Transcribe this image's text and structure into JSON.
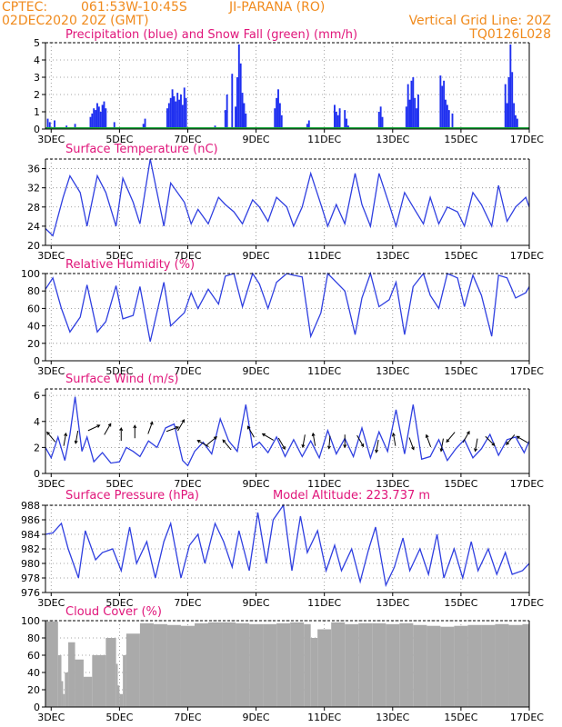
{
  "header": {
    "source": "CPTEC:",
    "coords": "061:53W-10:45S",
    "location": "JI-PARANA (RO)",
    "date": "02DEC2020 20Z (GMT)",
    "grid_note": "Vertical Grid Line: 20Z",
    "code": "TQ0126L028"
  },
  "colors": {
    "header": "#f08a1c",
    "title": "#e0157a",
    "line": "#2f3fe0",
    "precip": "#1e2ff0",
    "snow": "#1aa83a",
    "cloud": "#aaaaaa"
  },
  "x_axis": {
    "day_start": 2.833,
    "day_end": 17.0,
    "tick_days": [
      3,
      5,
      7,
      9,
      11,
      13,
      15,
      17
    ],
    "tick_labels": [
      "3DEC",
      "5DEC",
      "7DEC",
      "9DEC",
      "11DEC",
      "13DEC",
      "15DEC",
      "17DEC"
    ]
  },
  "chart_data": [
    {
      "type": "bar",
      "title": "Precipitation (blue) and Snow Fall (green) (mm/h)",
      "ylim": [
        0,
        5
      ],
      "yticks": [
        "0",
        "1",
        "2",
        "3",
        "4",
        "5"
      ],
      "series": [
        {
          "name": "Precipitation",
          "x": [
            2.9,
            2.96,
            3.1,
            3.25,
            3.45,
            3.7,
            4.15,
            4.2,
            4.25,
            4.3,
            4.35,
            4.4,
            4.45,
            4.5,
            4.55,
            4.6,
            4.85,
            5.7,
            5.75,
            6.4,
            6.45,
            6.5,
            6.55,
            6.6,
            6.65,
            6.7,
            6.75,
            6.8,
            6.85,
            6.9,
            6.95,
            7.8,
            8.1,
            8.15,
            8.3,
            8.4,
            8.45,
            8.5,
            8.55,
            8.6,
            8.65,
            8.7,
            9.55,
            9.6,
            9.65,
            9.7,
            9.75,
            10.5,
            10.55,
            11.3,
            11.35,
            11.4,
            11.45,
            11.6,
            11.65,
            11.7,
            12.6,
            12.65,
            12.7,
            13.4,
            13.45,
            13.5,
            13.55,
            13.6,
            13.65,
            13.7,
            13.75,
            14.4,
            14.45,
            14.5,
            14.55,
            14.6,
            14.65,
            14.75,
            16.3,
            16.35,
            16.4,
            16.45,
            16.5,
            16.55,
            16.6,
            16.65
          ],
          "values": [
            0.6,
            0.4,
            0.5,
            0.1,
            0.2,
            0.3,
            0.7,
            0.9,
            1.2,
            1.1,
            1.5,
            1.3,
            1.0,
            1.4,
            1.6,
            1.2,
            0.4,
            0.3,
            0.6,
            1.2,
            1.5,
            1.8,
            2.3,
            1.9,
            1.6,
            2.1,
            1.7,
            2.0,
            1.4,
            2.4,
            1.8,
            0.2,
            1.1,
            2.0,
            3.2,
            1.3,
            3.0,
            4.9,
            3.8,
            2.1,
            1.5,
            0.9,
            1.2,
            1.8,
            2.3,
            1.5,
            0.8,
            0.3,
            0.5,
            1.4,
            1.0,
            0.8,
            1.2,
            1.1,
            0.6,
            0.2,
            1.0,
            1.3,
            0.7,
            1.3,
            2.6,
            1.7,
            2.8,
            3.0,
            1.8,
            1.2,
            2.0,
            3.1,
            2.5,
            2.8,
            1.7,
            1.4,
            1.1,
            0.9,
            2.6,
            1.5,
            3.0,
            4.9,
            3.3,
            1.5,
            0.8,
            0.6
          ]
        },
        {
          "name": "Snow Fall",
          "x": [
            2.833,
            17.0
          ],
          "values": [
            0,
            0
          ]
        }
      ]
    },
    {
      "type": "line",
      "title": "Surface Temperature (nC)",
      "ylim": [
        20,
        38
      ],
      "yticks": [
        "20",
        "24",
        "28",
        "32",
        "36"
      ],
      "series": [
        {
          "name": "",
          "x": [
            2.833,
            3.05,
            3.35,
            3.55,
            3.85,
            4.05,
            4.35,
            4.6,
            4.9,
            5.1,
            5.4,
            5.6,
            5.9,
            6.3,
            6.5,
            6.9,
            7.1,
            7.3,
            7.6,
            7.9,
            8.1,
            8.35,
            8.6,
            8.9,
            9.1,
            9.35,
            9.6,
            9.9,
            10.1,
            10.35,
            10.6,
            10.9,
            11.1,
            11.35,
            11.6,
            11.9,
            12.1,
            12.35,
            12.6,
            12.9,
            13.1,
            13.35,
            13.6,
            13.9,
            14.1,
            14.35,
            14.6,
            14.9,
            15.1,
            15.35,
            15.6,
            15.9,
            16.1,
            16.35,
            16.6,
            16.9,
            17.0
          ],
          "values": [
            23.5,
            22.0,
            30.0,
            34.5,
            31.0,
            24.0,
            34.5,
            31.0,
            24.0,
            34.0,
            29.0,
            24.5,
            38.0,
            24.0,
            33.0,
            29.0,
            24.5,
            27.5,
            24.5,
            30.0,
            28.5,
            27.0,
            24.5,
            29.5,
            28.0,
            25.0,
            30.0,
            28.0,
            24.0,
            28.0,
            35.0,
            28.5,
            24.0,
            28.5,
            24.5,
            35.0,
            28.5,
            24.0,
            35.0,
            28.5,
            24.0,
            31.0,
            28.0,
            24.5,
            30.0,
            24.5,
            28.0,
            27.0,
            24.0,
            31.0,
            28.5,
            24.0,
            32.5,
            25.0,
            28.0,
            30.0,
            28.0
          ]
        }
      ]
    },
    {
      "type": "line",
      "title": "Relative Humidity (%)",
      "ylim": [
        0,
        100
      ],
      "yticks": [
        "0",
        "20",
        "40",
        "60",
        "80",
        "100"
      ],
      "series": [
        {
          "name": "",
          "x": [
            2.833,
            3.05,
            3.3,
            3.55,
            3.85,
            4.05,
            4.35,
            4.6,
            4.9,
            5.1,
            5.4,
            5.6,
            5.9,
            6.3,
            6.5,
            6.9,
            7.1,
            7.3,
            7.6,
            7.9,
            8.1,
            8.35,
            8.6,
            8.9,
            9.1,
            9.35,
            9.6,
            9.9,
            10.1,
            10.35,
            10.6,
            10.9,
            11.1,
            11.35,
            11.6,
            11.9,
            12.1,
            12.35,
            12.6,
            12.9,
            13.1,
            13.35,
            13.6,
            13.9,
            14.1,
            14.35,
            14.6,
            14.9,
            15.1,
            15.35,
            15.6,
            15.9,
            16.1,
            16.35,
            16.6,
            16.9,
            17.0
          ],
          "values": [
            82,
            95,
            60,
            33,
            50,
            87,
            33,
            45,
            86,
            48,
            52,
            85,
            22,
            90,
            40,
            55,
            78,
            60,
            82,
            65,
            97,
            100,
            62,
            100,
            88,
            60,
            90,
            100,
            98,
            96,
            28,
            55,
            100,
            90,
            80,
            30,
            72,
            100,
            62,
            70,
            90,
            30,
            85,
            100,
            75,
            60,
            100,
            95,
            62,
            98,
            75,
            28,
            98,
            95,
            72,
            78,
            85
          ]
        }
      ]
    },
    {
      "type": "line",
      "title": "Surface Wind (m/s)",
      "ylim": [
        0,
        6.5
      ],
      "yticks": [
        "0",
        "2",
        "4",
        "6"
      ],
      "series": [
        {
          "name": "",
          "x": [
            2.833,
            3.0,
            3.2,
            3.4,
            3.55,
            3.7,
            3.9,
            4.05,
            4.25,
            4.5,
            4.75,
            5.0,
            5.2,
            5.4,
            5.6,
            5.85,
            6.1,
            6.35,
            6.6,
            6.85,
            7.0,
            7.2,
            7.45,
            7.7,
            7.95,
            8.2,
            8.45,
            8.7,
            8.9,
            9.1,
            9.35,
            9.6,
            9.85,
            10.1,
            10.35,
            10.6,
            10.85,
            11.1,
            11.35,
            11.6,
            11.85,
            12.1,
            12.35,
            12.6,
            12.85,
            13.1,
            13.35,
            13.6,
            13.85,
            14.1,
            14.35,
            14.6,
            14.85,
            15.1,
            15.35,
            15.6,
            15.85,
            16.1,
            16.35,
            16.6,
            16.85,
            17.0
          ],
          "values": [
            2.0,
            1.2,
            2.8,
            1.0,
            3.0,
            5.9,
            1.7,
            2.8,
            0.9,
            1.6,
            0.8,
            0.9,
            2.0,
            1.7,
            1.3,
            2.5,
            2.0,
            3.5,
            3.8,
            1.0,
            0.6,
            1.7,
            2.4,
            1.5,
            4.2,
            2.5,
            1.7,
            5.3,
            2.0,
            2.4,
            1.6,
            2.8,
            1.3,
            2.6,
            1.3,
            2.5,
            1.2,
            3.3,
            1.5,
            2.7,
            1.3,
            3.5,
            1.2,
            3.2,
            1.7,
            4.9,
            1.5,
            5.3,
            1.1,
            1.3,
            2.6,
            1.0,
            1.9,
            2.6,
            1.2,
            1.9,
            3.0,
            1.4,
            2.6,
            2.8,
            1.6,
            2.5
          ]
        }
      ],
      "wind_barbs": [
        {
          "x": 3.0,
          "y": 2.8,
          "angle": -130
        },
        {
          "x": 3.4,
          "y": 2.6,
          "angle": -80
        },
        {
          "x": 3.75,
          "y": 2.8,
          "angle": 100
        },
        {
          "x": 4.25,
          "y": 3.5,
          "angle": -25
        },
        {
          "x": 4.65,
          "y": 3.4,
          "angle": -60
        },
        {
          "x": 5.05,
          "y": 3.0,
          "angle": -90
        },
        {
          "x": 5.45,
          "y": 3.2,
          "angle": -90
        },
        {
          "x": 5.9,
          "y": 3.5,
          "angle": -70
        },
        {
          "x": 6.55,
          "y": 3.4,
          "angle": -20
        },
        {
          "x": 6.8,
          "y": 3.7,
          "angle": -60
        },
        {
          "x": 7.45,
          "y": 2.3,
          "angle": -150
        },
        {
          "x": 7.7,
          "y": 2.5,
          "angle": -40
        },
        {
          "x": 8.15,
          "y": 2.2,
          "angle": -130
        },
        {
          "x": 8.85,
          "y": 3.2,
          "angle": -120
        },
        {
          "x": 9.35,
          "y": 2.8,
          "angle": -150
        },
        {
          "x": 9.75,
          "y": 2.3,
          "angle": 60
        },
        {
          "x": 10.4,
          "y": 2.5,
          "angle": 100
        },
        {
          "x": 10.7,
          "y": 2.6,
          "angle": -100
        },
        {
          "x": 11.15,
          "y": 2.4,
          "angle": 95
        },
        {
          "x": 11.6,
          "y": 2.5,
          "angle": 90
        },
        {
          "x": 12.05,
          "y": 2.5,
          "angle": 60
        },
        {
          "x": 12.55,
          "y": 2.1,
          "angle": 100
        },
        {
          "x": 13.05,
          "y": 2.6,
          "angle": -100
        },
        {
          "x": 13.55,
          "y": 2.3,
          "angle": 70
        },
        {
          "x": 14.05,
          "y": 2.5,
          "angle": -110
        },
        {
          "x": 14.45,
          "y": 2.2,
          "angle": 100
        },
        {
          "x": 14.7,
          "y": 2.8,
          "angle": 130
        },
        {
          "x": 15.15,
          "y": 2.8,
          "angle": -60
        },
        {
          "x": 15.45,
          "y": 2.2,
          "angle": 100
        },
        {
          "x": 15.85,
          "y": 2.5,
          "angle": 45
        },
        {
          "x": 16.45,
          "y": 2.6,
          "angle": 130
        },
        {
          "x": 16.8,
          "y": 2.6,
          "angle": -150
        }
      ]
    },
    {
      "type": "line",
      "title": "Surface Pressure (hPa)",
      "subtitle": "Model Altitude: 223.737 m",
      "ylim": [
        976,
        988
      ],
      "yticks": [
        "976",
        "978",
        "980",
        "982",
        "984",
        "986",
        "988"
      ],
      "series": [
        {
          "name": "",
          "x": [
            2.833,
            3.05,
            3.3,
            3.5,
            3.8,
            4.0,
            4.3,
            4.5,
            4.8,
            5.05,
            5.3,
            5.5,
            5.8,
            6.05,
            6.3,
            6.5,
            6.8,
            7.05,
            7.3,
            7.5,
            7.8,
            8.05,
            8.3,
            8.5,
            8.8,
            9.05,
            9.3,
            9.5,
            9.8,
            10.05,
            10.3,
            10.5,
            10.8,
            11.05,
            11.3,
            11.5,
            11.8,
            12.05,
            12.3,
            12.5,
            12.8,
            13.05,
            13.3,
            13.5,
            13.8,
            14.05,
            14.3,
            14.5,
            14.8,
            15.05,
            15.3,
            15.5,
            15.8,
            16.05,
            16.3,
            16.5,
            16.8,
            17.0
          ],
          "values": [
            984.0,
            984.2,
            985.5,
            982.0,
            978.0,
            984.5,
            980.5,
            981.5,
            982.0,
            979.0,
            985.0,
            980.0,
            983.0,
            978.0,
            983.0,
            985.5,
            978.0,
            982.5,
            984.0,
            980.0,
            985.5,
            983.0,
            979.5,
            984.5,
            979.0,
            987.0,
            980.0,
            986.0,
            988.0,
            979.0,
            986.5,
            981.5,
            984.5,
            979.0,
            982.5,
            979.0,
            982.0,
            977.5,
            982.0,
            985.0,
            977.0,
            979.5,
            983.5,
            979.0,
            982.0,
            978.5,
            984.0,
            978.0,
            982.0,
            978.0,
            983.0,
            979.0,
            982.0,
            978.5,
            981.5,
            978.5,
            979.0,
            980.0
          ]
        }
      ]
    },
    {
      "type": "bar",
      "title": "Cloud Cover (%)",
      "ylim": [
        0,
        100
      ],
      "yticks": [
        "0",
        "20",
        "40",
        "60",
        "80",
        "100"
      ],
      "series": [
        {
          "name": "Cloud Cover",
          "x": [
            2.833,
            3.2,
            3.3,
            3.35,
            3.4,
            3.5,
            3.7,
            3.95,
            4.2,
            4.6,
            4.9,
            4.95,
            5.0,
            5.1,
            5.2,
            5.6,
            6.0,
            6.4,
            6.8,
            7.2,
            7.6,
            8.0,
            8.4,
            8.8,
            9.2,
            9.6,
            10.0,
            10.4,
            10.6,
            10.8,
            11.2,
            11.6,
            12.0,
            12.4,
            12.8,
            13.2,
            13.6,
            14.0,
            14.4,
            14.8,
            15.2,
            15.6,
            16.0,
            16.4,
            16.8
          ],
          "values": [
            99,
            60,
            30,
            15,
            40,
            75,
            55,
            35,
            60,
            80,
            50,
            25,
            15,
            60,
            85,
            97,
            96,
            95,
            94,
            97,
            98,
            98,
            97,
            96,
            96,
            97,
            98,
            96,
            80,
            90,
            98,
            96,
            97,
            97,
            96,
            97,
            95,
            94,
            93,
            94,
            95,
            95,
            96,
            95,
            96
          ]
        }
      ]
    }
  ]
}
